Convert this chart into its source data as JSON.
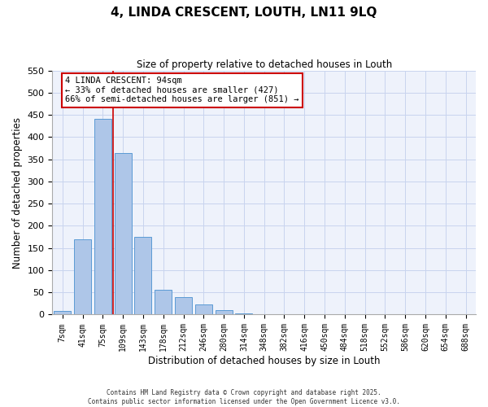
{
  "title": "4, LINDA CRESCENT, LOUTH, LN11 9LQ",
  "subtitle": "Size of property relative to detached houses in Louth",
  "xlabel": "Distribution of detached houses by size in Louth",
  "ylabel": "Number of detached properties",
  "bin_labels": [
    "7sqm",
    "41sqm",
    "75sqm",
    "109sqm",
    "143sqm",
    "178sqm",
    "212sqm",
    "246sqm",
    "280sqm",
    "314sqm",
    "348sqm",
    "382sqm",
    "416sqm",
    "450sqm",
    "484sqm",
    "518sqm",
    "552sqm",
    "586sqm",
    "620sqm",
    "654sqm",
    "688sqm"
  ],
  "bar_values": [
    8,
    170,
    441,
    364,
    176,
    55,
    39,
    22,
    10,
    2,
    1,
    0,
    0,
    0,
    0,
    0,
    0,
    0,
    0,
    0,
    0
  ],
  "bar_color": "#aec6e8",
  "bar_edge_color": "#5b9bd5",
  "vline_position": 2.5,
  "vline_color": "#cc0000",
  "ylim": [
    0,
    550
  ],
  "yticks": [
    0,
    50,
    100,
    150,
    200,
    250,
    300,
    350,
    400,
    450,
    500,
    550
  ],
  "annotation_title": "4 LINDA CRESCENT: 94sqm",
  "annotation_line1": "← 33% of detached houses are smaller (427)",
  "annotation_line2": "66% of semi-detached houses are larger (851) →",
  "annotation_box_color": "#ffffff",
  "annotation_box_edge": "#cc0000",
  "footer_line1": "Contains HM Land Registry data © Crown copyright and database right 2025.",
  "footer_line2": "Contains public sector information licensed under the Open Government Licence v3.0.",
  "bg_color": "#eef2fb",
  "grid_color": "#c8d4ee"
}
